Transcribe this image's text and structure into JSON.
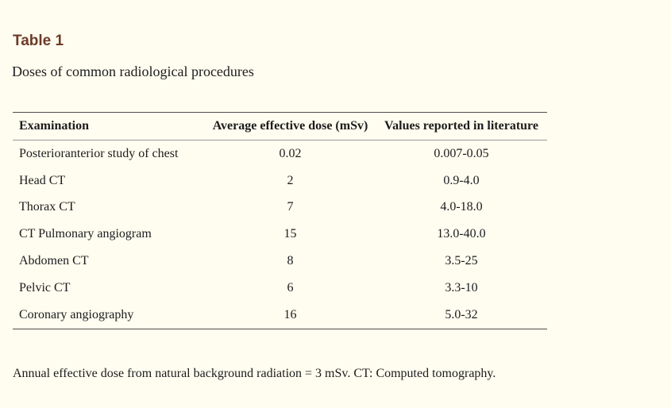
{
  "page": {
    "background_color": "#fffdf0",
    "title": "Table 1",
    "title_color": "#6e3a28",
    "caption": "Doses of common radiological procedures",
    "footnote": "Annual effective dose from natural background radiation = 3 mSv. CT: Computed tomography."
  },
  "table": {
    "columns": [
      "Examination",
      "Average effective dose (mSv)",
      "Values reported in literature"
    ],
    "rows": [
      {
        "examination": "Posterioranterior study of chest",
        "dose": "0.02",
        "range": "0.007-0.05"
      },
      {
        "examination": "Head CT",
        "dose": "2",
        "range": "0.9-4.0"
      },
      {
        "examination": "Thorax CT",
        "dose": "7",
        "range": "4.0-18.0"
      },
      {
        "examination": "CT Pulmonary angiogram",
        "dose": "15",
        "range": "13.0-40.0"
      },
      {
        "examination": "Abdomen CT",
        "dose": "8",
        "range": "3.5-25"
      },
      {
        "examination": "Pelvic CT",
        "dose": "6",
        "range": "3.3-10"
      },
      {
        "examination": "Coronary angiography",
        "dose": "16",
        "range": "5.0-32"
      }
    ],
    "rule_color_outer": "#4d4d4d",
    "rule_color_header": "#9b9b93"
  }
}
